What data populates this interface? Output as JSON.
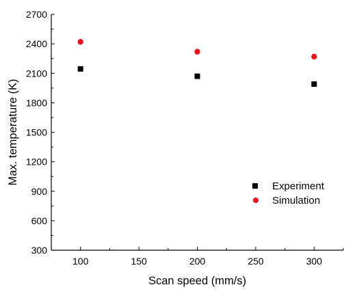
{
  "chart_data": {
    "type": "scatter",
    "title": "",
    "xlabel": "Scan  speed (mm/s)",
    "ylabel": "Max.  temperature (K)",
    "xlim": [
      75,
      325
    ],
    "ylim": [
      300,
      2700
    ],
    "xticks": [
      100,
      150,
      200,
      250,
      300
    ],
    "yticks": [
      300,
      600,
      900,
      1200,
      1500,
      1800,
      2100,
      2400,
      2700
    ],
    "grid": false,
    "legend_position": "lower-right",
    "series": [
      {
        "name": "Experiment",
        "marker": "square",
        "color": "#000000",
        "x": [
          100,
          200,
          300
        ],
        "y": [
          2145,
          2070,
          1990
        ]
      },
      {
        "name": "Simulation",
        "marker": "circle",
        "color": "#e8141b",
        "x": [
          100,
          200,
          300
        ],
        "y": [
          2420,
          2320,
          2270
        ]
      }
    ]
  }
}
